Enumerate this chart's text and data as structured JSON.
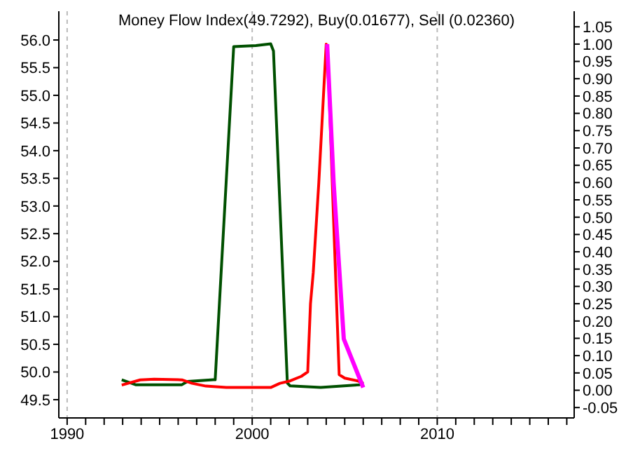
{
  "chart_data": {
    "type": "line",
    "title": "Money Flow Index(49.7292), Buy(0.01677), Sell (0.02360)",
    "xlim": [
      1989.55,
      2017.4
    ],
    "xticks": [
      1990,
      {
        "value": 1991,
        "label": null
      },
      {
        "value": 1992,
        "label": null
      },
      {
        "value": 1993,
        "label": null
      },
      {
        "value": 1994,
        "label": null
      },
      {
        "value": 1995,
        "label": null
      },
      {
        "value": 1996,
        "label": null
      },
      {
        "value": 1997,
        "label": null
      },
      {
        "value": 1998,
        "label": null
      },
      {
        "value": 1999,
        "label": null
      },
      2000,
      {
        "value": 2001,
        "label": null
      },
      {
        "value": 2002,
        "label": null
      },
      {
        "value": 2003,
        "label": null
      },
      {
        "value": 2004,
        "label": null
      },
      {
        "value": 2005,
        "label": null
      },
      {
        "value": 2006,
        "label": null
      },
      {
        "value": 2007,
        "label": null
      },
      {
        "value": 2008,
        "label": null
      },
      {
        "value": 2009,
        "label": null
      },
      2010,
      {
        "value": 2011,
        "label": null
      },
      {
        "value": 2012,
        "label": null
      },
      {
        "value": 2013,
        "label": null
      },
      {
        "value": 2014,
        "label": null
      },
      {
        "value": 2015,
        "label": null
      },
      {
        "value": 2016,
        "label": null
      },
      {
        "value": 2017,
        "label": null
      }
    ],
    "ylim": [
      49.17,
      56.52
    ],
    "yticks": [
      49.5,
      {
        "value": 50,
        "label": "50.0"
      },
      50.5,
      {
        "value": 51,
        "label": "51.0"
      },
      51.5,
      {
        "value": 52,
        "label": "52.0"
      },
      52.5,
      {
        "value": 53,
        "label": "53.0"
      },
      53.5,
      {
        "value": 54,
        "label": "54.0"
      },
      54.5,
      {
        "value": 55,
        "label": "55.0"
      },
      55.5,
      {
        "value": 56,
        "label": "56.0"
      }
    ],
    "y2lim": [
      -0.08,
      1.095
    ],
    "y2ticks": [
      {
        "value": -0.05,
        "label": "-0.05"
      },
      {
        "value": 0,
        "label": "0.00"
      },
      {
        "value": 0.05,
        "label": "0.05"
      },
      {
        "value": 0.1,
        "label": "0.10"
      },
      {
        "value": 0.15,
        "label": "0.15"
      },
      {
        "value": 0.2,
        "label": "0.20"
      },
      {
        "value": 0.25,
        "label": "0.25"
      },
      {
        "value": 0.3,
        "label": "0.30"
      },
      {
        "value": 0.35,
        "label": "0.35"
      },
      {
        "value": 0.4,
        "label": "0.40"
      },
      {
        "value": 0.45,
        "label": "0.45"
      },
      {
        "value": 0.5,
        "label": "0.50"
      },
      {
        "value": 0.55,
        "label": "0.55"
      },
      {
        "value": 0.6,
        "label": "0.60"
      },
      {
        "value": 0.65,
        "label": "0.65"
      },
      {
        "value": 0.7,
        "label": "0.70"
      },
      {
        "value": 0.75,
        "label": "0.75"
      },
      {
        "value": 0.8,
        "label": "0.80"
      },
      {
        "value": 0.85,
        "label": "0.85"
      },
      {
        "value": 0.9,
        "label": "0.90"
      },
      {
        "value": 0.95,
        "label": "0.95"
      },
      {
        "value": 1,
        "label": "1.00"
      },
      {
        "value": 1.05,
        "label": "1.05"
      }
    ],
    "grid": "x",
    "marker": "none",
    "line_style": "solid",
    "series": [
      {
        "color": "#005000",
        "x": [
          1992.95,
          1993.7,
          1996.2,
          1996.5,
          1997.9,
          1998.0,
          1999.0,
          2000.2,
          2001.0,
          2001.15,
          2001.9,
          2002.05,
          2003.7,
          2005.8,
          2006.0
        ],
        "values": [
          49.86,
          49.77,
          49.77,
          49.83,
          49.86,
          49.86,
          55.88,
          55.9,
          55.93,
          55.8,
          49.8,
          49.75,
          49.72,
          49.77,
          49.82
        ]
      },
      {
        "axis": "y2",
        "color": "#ff0000",
        "x": [
          1992.95,
          1993.95,
          1994.7,
          1996.2,
          1996.75,
          1997.5,
          1998.6,
          2001.0,
          2001.5,
          2002.05,
          2002.65,
          2003.0,
          2003.15,
          2003.3,
          2003.6,
          2004.0,
          2004.15,
          2004.4,
          2004.7,
          2005.0,
          2005.7,
          2006.0
        ],
        "values": [
          0.015,
          0.03,
          0.032,
          0.03,
          0.02,
          0.012,
          0.008,
          0.008,
          0.02,
          0.027,
          0.04,
          0.053,
          0.25,
          0.34,
          0.6,
          1.0,
          0.87,
          0.49,
          0.045,
          0.035,
          0.027,
          0.02
        ]
      },
      {
        "axis": "y2",
        "color": "#ff00ff",
        "x": [
          2004.05,
          2004.4,
          2004.95,
          2006.0
        ],
        "values": [
          1.0,
          0.6,
          0.148,
          0.008
        ]
      }
    ]
  }
}
